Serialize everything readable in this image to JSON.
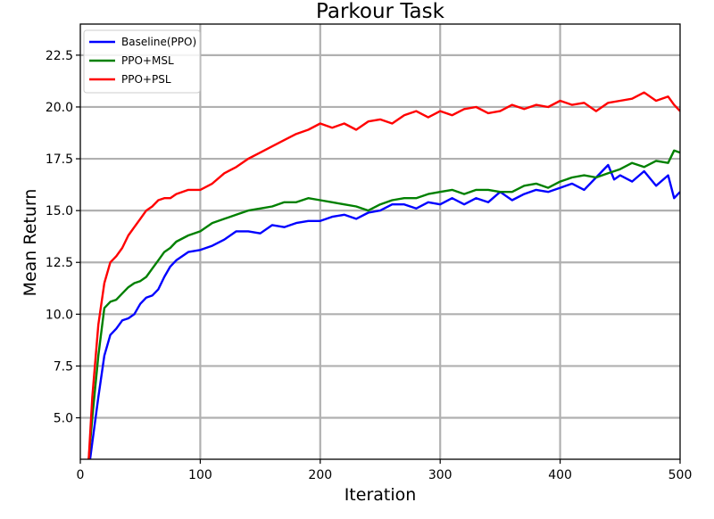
{
  "chart_data": {
    "type": "line",
    "title": "Parkour Task",
    "xlabel": "Iteration",
    "ylabel": "Mean Return",
    "xlim": [
      0,
      500
    ],
    "ylim": [
      3.0,
      24.0
    ],
    "xticks": [
      0,
      100,
      200,
      300,
      400,
      500
    ],
    "xtick_labels": [
      "0",
      "100",
      "200",
      "300",
      "400",
      "500"
    ],
    "yticks": [
      5.0,
      7.5,
      10.0,
      12.5,
      15.0,
      17.5,
      20.0,
      22.5
    ],
    "ytick_labels": [
      "5.0",
      "7.5",
      "10.0",
      "12.5",
      "15.0",
      "17.5",
      "20.0",
      "22.5"
    ],
    "grid": true,
    "legend_position": "top-left",
    "series": [
      {
        "name": "Baseline(PPO)",
        "color": "#0000ff",
        "x": [
          7,
          10,
          15,
          20,
          25,
          30,
          35,
          40,
          45,
          50,
          55,
          60,
          65,
          70,
          75,
          80,
          90,
          100,
          110,
          120,
          130,
          140,
          150,
          160,
          170,
          180,
          190,
          200,
          210,
          220,
          230,
          240,
          250,
          260,
          270,
          280,
          290,
          300,
          310,
          320,
          330,
          340,
          350,
          360,
          370,
          380,
          390,
          400,
          410,
          420,
          430,
          440,
          445,
          450,
          460,
          470,
          480,
          490,
          495,
          500
        ],
        "values": [
          2.5,
          3.8,
          6.0,
          8.0,
          9.0,
          9.3,
          9.7,
          9.8,
          10.0,
          10.5,
          10.8,
          10.9,
          11.2,
          11.8,
          12.3,
          12.6,
          13.0,
          13.1,
          13.3,
          13.6,
          14.0,
          14.0,
          13.9,
          14.3,
          14.2,
          14.4,
          14.5,
          14.5,
          14.7,
          14.8,
          14.6,
          14.9,
          15.0,
          15.3,
          15.3,
          15.1,
          15.4,
          15.3,
          15.6,
          15.3,
          15.6,
          15.4,
          15.9,
          15.5,
          15.8,
          16.0,
          15.9,
          16.1,
          16.3,
          16.0,
          16.6,
          17.2,
          16.5,
          16.7,
          16.4,
          16.9,
          16.2,
          16.7,
          15.6,
          15.9
        ]
      },
      {
        "name": "PPO+MSL",
        "color": "#008000",
        "x": [
          7,
          10,
          15,
          20,
          25,
          30,
          35,
          40,
          45,
          50,
          55,
          60,
          65,
          70,
          75,
          80,
          90,
          100,
          110,
          120,
          130,
          140,
          150,
          160,
          170,
          180,
          190,
          200,
          210,
          220,
          230,
          240,
          250,
          260,
          270,
          280,
          290,
          300,
          310,
          320,
          330,
          340,
          350,
          360,
          370,
          380,
          390,
          400,
          410,
          420,
          430,
          440,
          450,
          460,
          470,
          480,
          490,
          495,
          500
        ],
        "values": [
          3.0,
          5.0,
          8.0,
          10.3,
          10.6,
          10.7,
          11.0,
          11.3,
          11.5,
          11.6,
          11.8,
          12.2,
          12.6,
          13.0,
          13.2,
          13.5,
          13.8,
          14.0,
          14.4,
          14.6,
          14.8,
          15.0,
          15.1,
          15.2,
          15.4,
          15.4,
          15.6,
          15.5,
          15.4,
          15.3,
          15.2,
          15.0,
          15.3,
          15.5,
          15.6,
          15.6,
          15.8,
          15.9,
          16.0,
          15.8,
          16.0,
          16.0,
          15.9,
          15.9,
          16.2,
          16.3,
          16.1,
          16.4,
          16.6,
          16.7,
          16.6,
          16.8,
          17.0,
          17.3,
          17.1,
          17.4,
          17.3,
          17.9,
          17.8
        ]
      },
      {
        "name": "PPO+PSL",
        "color": "#ff0000",
        "x": [
          7,
          10,
          15,
          20,
          25,
          30,
          35,
          40,
          45,
          50,
          55,
          60,
          65,
          70,
          75,
          80,
          90,
          100,
          110,
          120,
          130,
          140,
          150,
          160,
          170,
          180,
          190,
          200,
          210,
          220,
          230,
          240,
          250,
          260,
          270,
          280,
          290,
          300,
          310,
          320,
          330,
          340,
          350,
          360,
          370,
          380,
          390,
          400,
          410,
          420,
          430,
          440,
          450,
          460,
          470,
          480,
          490,
          495,
          500
        ],
        "values": [
          3.0,
          6.0,
          9.5,
          11.5,
          12.5,
          12.8,
          13.2,
          13.8,
          14.2,
          14.6,
          15.0,
          15.2,
          15.5,
          15.6,
          15.6,
          15.8,
          16.0,
          16.0,
          16.3,
          16.8,
          17.1,
          17.5,
          17.8,
          18.1,
          18.4,
          18.7,
          18.9,
          19.2,
          19.0,
          19.2,
          18.9,
          19.3,
          19.4,
          19.2,
          19.6,
          19.8,
          19.5,
          19.8,
          19.6,
          19.9,
          20.0,
          19.7,
          19.8,
          20.1,
          19.9,
          20.1,
          20.0,
          20.3,
          20.1,
          20.2,
          19.8,
          20.2,
          20.3,
          20.4,
          20.7,
          20.3,
          20.5,
          20.1,
          19.8
        ]
      }
    ]
  }
}
